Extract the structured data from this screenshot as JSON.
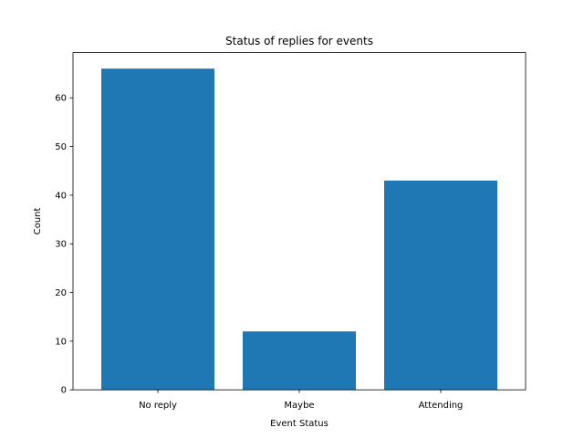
{
  "chart_data": {
    "type": "bar",
    "title": "Status of replies for events",
    "xlabel": "Event Status",
    "ylabel": "Count",
    "categories": [
      "No reply",
      "Maybe",
      "Attending"
    ],
    "values": [
      66,
      12,
      43
    ],
    "ylim": [
      0,
      69.3
    ],
    "yticks": [
      0,
      10,
      20,
      30,
      40,
      50,
      60
    ],
    "bar_color": "#1f77b4",
    "grid": false,
    "legend": "none"
  }
}
